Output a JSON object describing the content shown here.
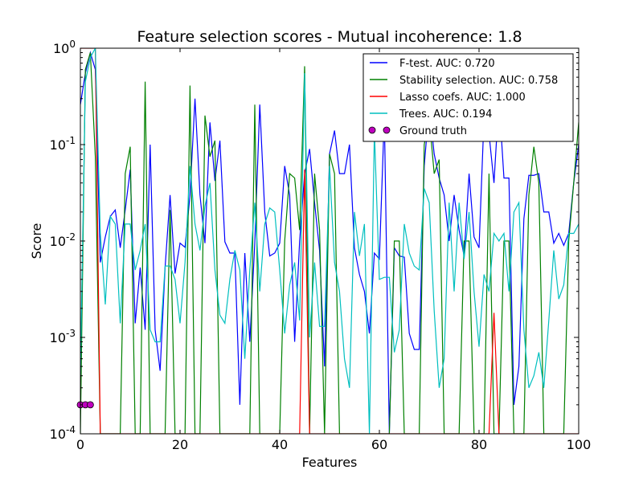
{
  "chart_data": {
    "type": "line",
    "title": "Feature selection scores - Mutual incoherence: 1.8",
    "xlabel": "Features",
    "ylabel": "Score",
    "xlim": [
      0,
      100
    ],
    "ylim": [
      0.0001,
      1
    ],
    "yscale": "log",
    "x_ticks": [
      0,
      20,
      40,
      60,
      80,
      100
    ],
    "x_tick_labels": [
      "0",
      "20",
      "40",
      "60",
      "80",
      "100"
    ],
    "y_tick_labels": [
      {
        "base": "10",
        "exp": "-4",
        "value": 0.0001
      },
      {
        "base": "10",
        "exp": "-3",
        "value": 0.001
      },
      {
        "base": "10",
        "exp": "-2",
        "value": 0.01
      },
      {
        "base": "10",
        "exp": "-1",
        "value": 0.1
      },
      {
        "base": "10",
        "exp": "0",
        "value": 1
      }
    ],
    "grid": false,
    "legend_position": "top-right",
    "series": [
      {
        "name": "F-test. AUC: 0.720",
        "color": "#0000ff",
        "values": [
          0.26,
          0.55,
          0.9,
          0.6,
          0.006,
          0.011,
          0.018,
          0.021,
          0.0085,
          0.021,
          0.055,
          0.0014,
          0.0053,
          0.0012,
          0.1,
          0.0012,
          0.00045,
          0.0053,
          0.03,
          0.0046,
          0.0095,
          0.0086,
          0.03,
          0.3,
          0.03,
          0.0095,
          0.17,
          0.042,
          0.11,
          0.0098,
          0.0075,
          0.0075,
          0.0002,
          0.0075,
          0.0009,
          0.0095,
          0.26,
          0.02,
          0.007,
          0.0075,
          0.0095,
          0.06,
          0.03,
          0.0009,
          0.01,
          0.05,
          0.09,
          0.025,
          0.008,
          0.0005,
          0.08,
          0.14,
          0.05,
          0.05,
          0.1,
          0.0085,
          0.0045,
          0.003,
          0.0011,
          0.0075,
          0.0065,
          0.2,
          0.0001,
          0.0085,
          0.007,
          0.0068,
          0.0011,
          0.00075,
          0.00075,
          0.06,
          0.25,
          0.08,
          0.045,
          0.03,
          0.01,
          0.03,
          0.013,
          0.007,
          0.05,
          0.011,
          0.0085,
          0.19,
          0.13,
          0.04,
          0.3,
          0.045,
          0.045,
          0.0002,
          0.0005,
          0.017,
          0.048,
          0.048,
          0.05,
          0.02,
          0.02,
          0.0095,
          0.012,
          0.009,
          0.012,
          0.04,
          0.1
        ]
      },
      {
        "name": "Stability selection. AUC: 0.758",
        "color": "#008000",
        "values": [
          0.0001,
          0.6,
          0.9,
          0.075,
          0.0001,
          0.0001,
          0.0001,
          0.0001,
          0.0001,
          0.05,
          0.095,
          0.0001,
          0.0001,
          0.45,
          0.0001,
          0.0001,
          0.0001,
          0.0001,
          0.021,
          0.0001,
          0.0001,
          0.0001,
          0.41,
          0.0001,
          0.0001,
          0.2,
          0.075,
          0.11,
          0.0001,
          0.0001,
          0.0001,
          0.0001,
          0.0001,
          0.0001,
          0.0001,
          0.26,
          0.0001,
          0.0001,
          0.0001,
          0.0001,
          0.0001,
          0.01,
          0.05,
          0.045,
          0.013,
          0.65,
          0.0001,
          0.05,
          0.013,
          0.0001,
          0.08,
          0.05,
          0.0001,
          0.0001,
          0.0001,
          0.0001,
          0.0001,
          0.0001,
          0.0001,
          0.0001,
          0.0001,
          0.0001,
          0.0001,
          0.01,
          0.01,
          0.0001,
          0.0001,
          0.0001,
          0.0001,
          0.1,
          0.19,
          0.05,
          0.07,
          0.0001,
          0.0001,
          0.0001,
          0.0001,
          0.01,
          0.01,
          0.0001,
          0.0001,
          0.0001,
          0.05,
          0.0001,
          0.0001,
          0.01,
          0.01,
          0.0001,
          0.0001,
          0.0001,
          0.03,
          0.095,
          0.04,
          0.0001,
          0.0001,
          0.0001,
          0.0001,
          0.0001,
          0.01,
          0.04,
          0.17
        ]
      },
      {
        "name": "Lasso coefs. AUC: 1.000",
        "color": "#ff0000",
        "values": [
          1,
          1,
          1,
          1,
          0.0001,
          0.0001,
          0.0001,
          0.0001,
          0.0001,
          0.0001,
          0.0001,
          0.0001,
          0.0001,
          0.0001,
          0.0001,
          0.0001,
          0.0001,
          0.0001,
          0.0001,
          0.0001,
          0.0001,
          0.0001,
          0.0001,
          0.0001,
          0.0001,
          0.0001,
          0.0001,
          0.0001,
          0.0001,
          0.0001,
          0.0001,
          0.0001,
          0.0001,
          0.0001,
          0.0001,
          0.0001,
          0.0001,
          0.0001,
          0.0001,
          0.0001,
          0.0001,
          0.0001,
          0.0001,
          0.0001,
          0.0001,
          0.055,
          0.0001,
          0.0001,
          0.0001,
          0.0001,
          0.0001,
          0.0001,
          0.0001,
          0.0001,
          0.0001,
          0.0001,
          0.0001,
          0.0001,
          0.0001,
          0.0001,
          0.0001,
          0.0001,
          0.0001,
          0.0001,
          0.0001,
          0.0001,
          0.0001,
          0.0001,
          0.0001,
          0.0001,
          0.0001,
          0.0001,
          0.0001,
          0.0001,
          0.0001,
          0.0001,
          0.0001,
          0.0001,
          0.0001,
          0.0001,
          0.0001,
          0.0001,
          0.0001,
          0.0018,
          0.0001,
          0.0001,
          0.0001,
          0.0001,
          0.0001,
          0.0001,
          0.0001,
          0.0001,
          0.0001,
          0.0001,
          0.0001,
          0.0001,
          0.0001,
          0.0001,
          0.0001,
          0.0001,
          0.0001
        ]
      },
      {
        "name": "Trees. AUC: 0.194",
        "color": "#00bfbf",
        "values": [
          0.0004,
          0.45,
          0.8,
          1,
          0.012,
          0.0022,
          0.018,
          0.015,
          0.0014,
          0.015,
          0.015,
          0.005,
          0.008,
          0.015,
          0.0012,
          0.0009,
          0.0009,
          0.0055,
          0.0055,
          0.004,
          0.0014,
          0.006,
          0.06,
          0.015,
          0.008,
          0.023,
          0.04,
          0.005,
          0.0017,
          0.0014,
          0.004,
          0.008,
          0.005,
          0.0006,
          0.005,
          0.025,
          0.003,
          0.015,
          0.022,
          0.02,
          0.005,
          0.0011,
          0.0035,
          0.006,
          0.0015,
          0.55,
          0.001,
          0.006,
          0.0013,
          0.0013,
          0.06,
          0.006,
          0.003,
          0.0006,
          0.0003,
          0.02,
          0.007,
          0.015,
          0.0001,
          0.14,
          0.004,
          0.0042,
          0.0042,
          0.0007,
          0.0012,
          0.015,
          0.0075,
          0.0055,
          0.005,
          0.035,
          0.025,
          0.0019,
          0.0003,
          0.0006,
          0.025,
          0.003,
          0.025,
          0.0065,
          0.02,
          0.003,
          0.0008,
          0.0045,
          0.003,
          0.012,
          0.01,
          0.012,
          0.003,
          0.02,
          0.025,
          0.0012,
          0.0003,
          0.0004,
          0.0007,
          0.0003,
          0.0015,
          0.008,
          0.0025,
          0.0035,
          0.012,
          0.012,
          0.015
        ]
      }
    ],
    "ground_truth": {
      "name": "Ground truth",
      "color": "#bf00bf",
      "x": [
        0,
        1,
        2
      ],
      "y": [
        0.0002,
        0.0002,
        0.0002
      ]
    }
  }
}
